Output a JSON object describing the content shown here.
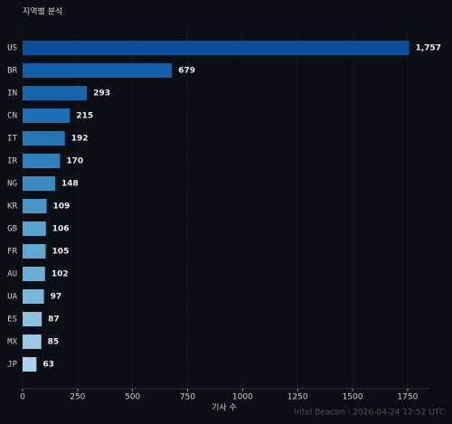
{
  "chart_data": {
    "type": "hbar",
    "title": "지역별 분석",
    "xlabel": "기사 수",
    "footnote": "Intel Beacon · 2026-04-24 12:52 UTC",
    "categories": [
      "US",
      "BR",
      "IN",
      "CN",
      "IT",
      "IR",
      "NG",
      "KR",
      "GB",
      "FR",
      "AU",
      "UA",
      "ES",
      "MX",
      "JP"
    ],
    "values": [
      1757,
      679,
      293,
      215,
      192,
      170,
      148,
      109,
      106,
      105,
      102,
      97,
      87,
      85,
      63
    ],
    "value_labels": [
      "1,757",
      "679",
      "293",
      "215",
      "192",
      "170",
      "148",
      "109",
      "106",
      "105",
      "102",
      "97",
      "87",
      "85",
      "63"
    ],
    "colors": [
      "#0b4f9c",
      "#125ea8",
      "#1865ae",
      "#1f6db3",
      "#2777b8",
      "#3080bd",
      "#3a8bc2",
      "#4896c8",
      "#5aa2cf",
      "#62a7d2",
      "#6aaed6",
      "#78b6da",
      "#8ec1de",
      "#9cc9e2",
      "#abd2e7"
    ],
    "xlim": [
      0,
      1845
    ],
    "xticks": [
      0,
      250,
      500,
      750,
      1000,
      1250,
      1500,
      1750
    ],
    "grid": true
  }
}
